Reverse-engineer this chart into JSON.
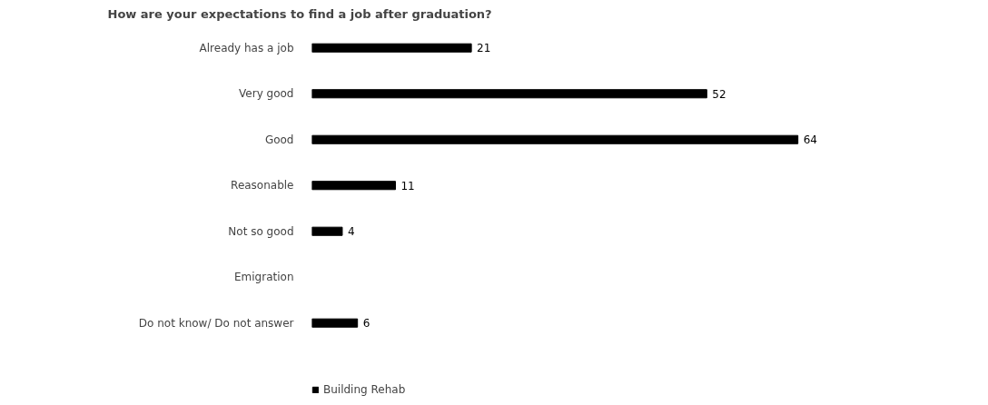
{
  "chart_data": {
    "type": "bar",
    "orientation": "horizontal",
    "title": "How are your expectations to find a job after graduation?",
    "categories": [
      "Already has a job",
      "Very good",
      "Good",
      "Reasonable",
      "Not so good",
      "Emigration",
      "Do not know/ Do not answer"
    ],
    "series": [
      {
        "name": "Building Rehab",
        "color": "#000000",
        "values": [
          21,
          52,
          64,
          11,
          4,
          null,
          6
        ]
      }
    ],
    "data_labels": true,
    "legend": "bottom",
    "grid": false,
    "tick_labels": "y"
  }
}
